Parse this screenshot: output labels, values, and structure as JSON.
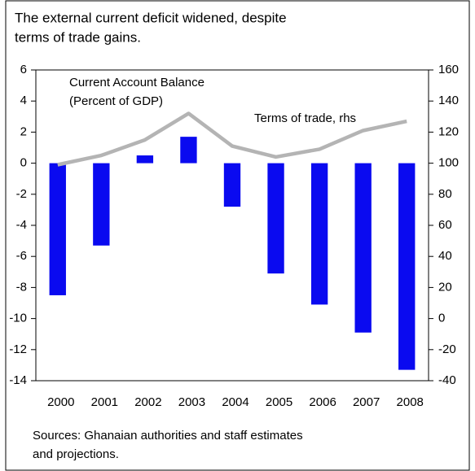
{
  "chart_data": {
    "type": "bar",
    "title": [
      "The external current deficit widened, despite",
      "terms of trade gains."
    ],
    "annotations": [
      "Current Account Balance",
      "(Percent of GDP)",
      "Terms of trade, rhs"
    ],
    "source": [
      "Sources: Ghanaian authorities and staff estimates",
      "and projections."
    ],
    "categories": [
      "2000",
      "2001",
      "2002",
      "2003",
      "2004",
      "2005",
      "2006",
      "2007",
      "2008"
    ],
    "series": [
      {
        "type": "bar",
        "color": "#0a0af0",
        "values": [
          -8.5,
          -5.3,
          0.5,
          1.7,
          -2.8,
          -7.1,
          -9.1,
          -10.9,
          -13.3
        ]
      },
      {
        "type": "line",
        "axis": "y2",
        "color": "#b4b4b4",
        "values": [
          99,
          105,
          115,
          132,
          111,
          104,
          109,
          121,
          127
        ]
      }
    ],
    "ylim": [
      -14,
      6
    ],
    "yticks": [
      -14,
      -12,
      -10,
      -8,
      -6,
      -4,
      -2,
      0,
      2,
      4,
      6
    ],
    "y2lim": [
      -40,
      160
    ],
    "y2ticks": [
      -40,
      -20,
      0,
      20,
      40,
      60,
      80,
      100,
      120,
      140,
      160
    ],
    "grid": false
  }
}
